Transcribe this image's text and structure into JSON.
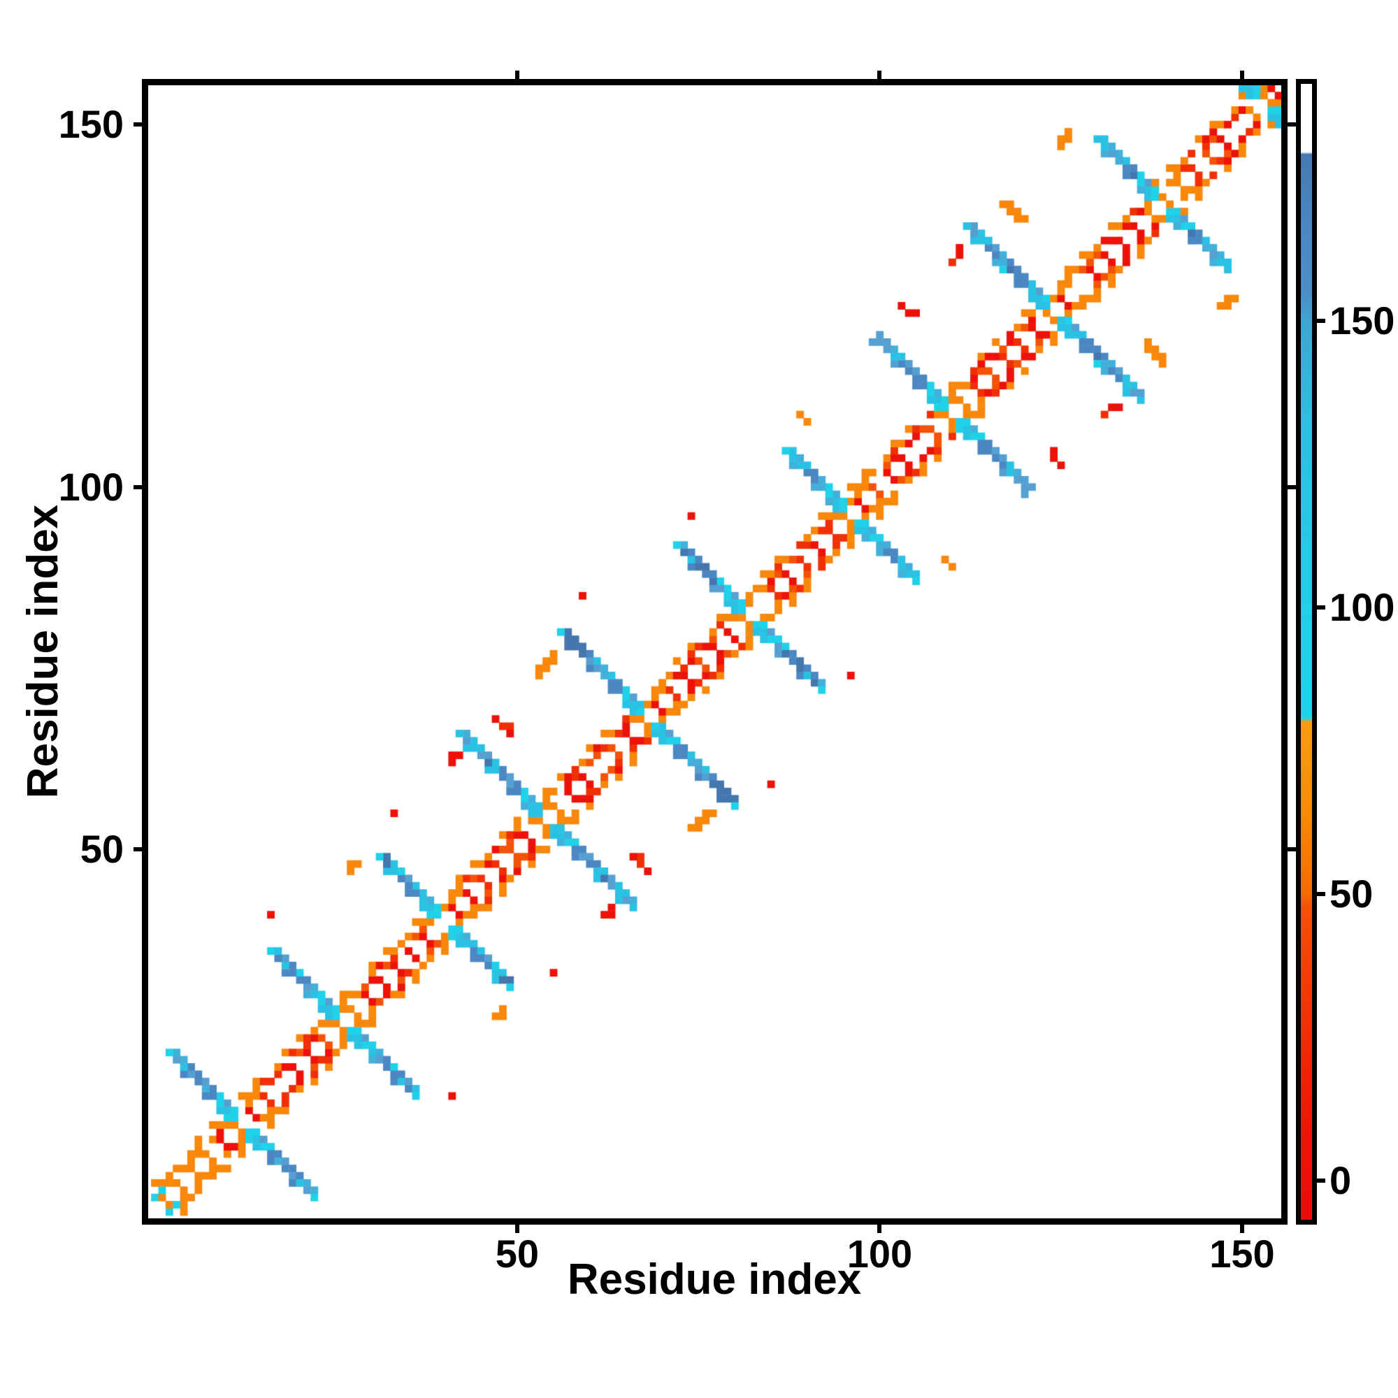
{
  "figure": {
    "background": "#ffffff",
    "axis_color": "#000000"
  },
  "chart_data": {
    "type": "heatmap",
    "title": "",
    "xlabel": "Residue index",
    "ylabel": "Residue index",
    "x_range": [
      -0.9,
      155.4
    ],
    "y_range": [
      -0.9,
      155.4
    ],
    "x_ticks": [
      50,
      100,
      150
    ],
    "y_ticks": [
      50,
      100,
      150
    ],
    "grid": false,
    "n_residues": 156,
    "seed": 11,
    "description": "Symmetric residue-residue contact map of a ~156-residue alpha-helical repeat protein. White diagonal flanked by a red/orange checkered short-range band (|i-j| <= 4); steel-blue/cyan anti-diagonal streaks cross the diagonal at inter-helix turn residues (antiparallel contacts between consecutive helices); sparse red/orange staircase dashes at sequence separation ~21-25 are helix k to helix k+2 contacts; occasional isolated cyan cells at separation ~8-15.",
    "turn_residues": [
      12,
      26,
      40,
      54,
      68,
      82,
      96,
      110,
      124,
      139,
      153
    ],
    "helix_repeat_length": 14,
    "contact_classes": [
      {
        "name": "near-diagonal short-range (|i-j|<=4)",
        "value_range": [
          2,
          66
        ],
        "colors": [
          "red",
          "orange-red",
          "orange"
        ]
      },
      {
        "name": "turn-crossing accents next to diagonal",
        "value_range": [
          84,
          110
        ],
        "colors": [
          "bright cyan"
        ]
      },
      {
        "name": "adjacent-helix antiparallel streaks",
        "value_range": [
          96,
          166
        ],
        "colors": [
          "cyan",
          "steel blue"
        ]
      },
      {
        "name": "helix k to k+2 dashes (|i-j| ~ 21-25)",
        "value_range": [
          3,
          60
        ],
        "colors": [
          "red",
          "orange"
        ]
      }
    ],
    "colormap_thresholds": [
      {
        "max": 12,
        "color": "#ec1209"
      },
      {
        "max": 24,
        "color": "#f02f05"
      },
      {
        "max": 40,
        "color": "#f45206"
      },
      {
        "max": 62,
        "color": "#f8870b"
      },
      {
        "max": 78,
        "color": "#faa41e"
      },
      {
        "max": 95,
        "color": "#1fd2e9"
      },
      {
        "max": 112,
        "color": "#2ac2e4"
      },
      {
        "max": 126,
        "color": "#42b0da"
      },
      {
        "max": 140,
        "color": "#55a0d0"
      },
      {
        "max": 155,
        "color": "#4b88c3"
      },
      {
        "max": 170,
        "color": "#4377ad"
      }
    ],
    "colormap_default": "#ffffff",
    "colorbar": {
      "vmin": -6.8,
      "vmax": 191.4,
      "ticks": [
        0,
        50,
        100,
        150
      ],
      "tick_labels": [
        "0",
        "50",
        "100",
        "150"
      ],
      "gradient": [
        {
          "at": 0.0,
          "color": "#ffffff"
        },
        {
          "at": 0.06,
          "color": "#ffffff"
        },
        {
          "at": 0.062,
          "color": "#4679b0"
        },
        {
          "at": 0.13,
          "color": "#4b88c3"
        },
        {
          "at": 0.184,
          "color": "#4c8ec6"
        },
        {
          "at": 0.21,
          "color": "#3fa6d2"
        },
        {
          "at": 0.3,
          "color": "#2fbfe0"
        },
        {
          "at": 0.43,
          "color": "#26cbe7"
        },
        {
          "at": 0.558,
          "color": "#1dd2ea"
        },
        {
          "at": 0.562,
          "color": "#f99c13"
        },
        {
          "at": 0.64,
          "color": "#f88b07"
        },
        {
          "at": 0.713,
          "color": "#f56b02"
        },
        {
          "at": 0.725,
          "color": "#f45106"
        },
        {
          "at": 0.8,
          "color": "#f13906"
        },
        {
          "at": 0.87,
          "color": "#ee2407"
        },
        {
          "at": 0.93,
          "color": "#eb1408"
        },
        {
          "at": 1.0,
          "color": "#e70d0c"
        }
      ]
    }
  }
}
